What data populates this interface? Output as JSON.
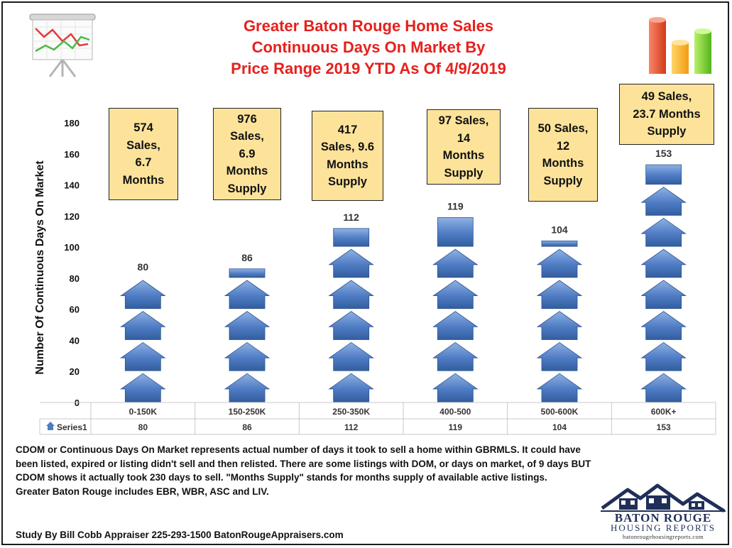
{
  "chart_data": {
    "type": "bar",
    "title_lines": [
      "Greater Baton Rouge Home Sales",
      "Continuous Days On Market By",
      "Price Range 2019 YTD As Of 4/9/2019"
    ],
    "ylabel": "Number Of Continuous Days On Market",
    "ylim": [
      0,
      180
    ],
    "yticks": [
      "0",
      "20",
      "40",
      "60",
      "80",
      "100",
      "120",
      "140",
      "160",
      "180"
    ],
    "categories": [
      "0-150K",
      "150-250K",
      "250-350K",
      "400-500",
      "500-600K",
      "600K+"
    ],
    "series": [
      {
        "name": "Series1",
        "values": [
          80,
          86,
          112,
          119,
          104,
          153
        ]
      }
    ],
    "data_labels": [
      "80",
      "86",
      "112",
      "119",
      "104",
      "153"
    ],
    "data_table": {
      "legend_label": "Series1",
      "values": [
        "80",
        "86",
        "112",
        "119",
        "104",
        "153"
      ]
    },
    "annotations": [
      "574\nSales,\n6.7\nMonths",
      "976\nSales,\n6.9\nMonths\nSupply",
      "417\nSales, 9.6\nMonths\nSupply",
      "97 Sales,\n14\nMonths\nSupply",
      "50 Sales,\n12\nMonths\nSupply",
      "49 Sales,\n23.7 Months\nSupply"
    ],
    "bar_color": "#4a78c0",
    "grid": false
  },
  "footnote": {
    "paragraph": "CDOM or Continuous Days On Market represents actual number of days it took to sell a home within GBRMLS. It could have been listed, expired or listing didn't sell and then relisted. There are some listings with DOM, or days on market, of 9 days BUT CDOM shows it actually took 230 days to sell. \"Months Supply\" stands for months supply of available active listings.",
    "line2": "Greater Baton Rouge includes EBR, WBR, ASC and LIV."
  },
  "credit": "Study By Bill Cobb Appraiser  225-293-1500 BatonRougeAppraisers.com",
  "logo": {
    "line1": "BATON ROUGE",
    "line2": "HOUSING REPORTS",
    "line3": "batonrougehousingreports.com"
  },
  "title_color": "#e5211d"
}
